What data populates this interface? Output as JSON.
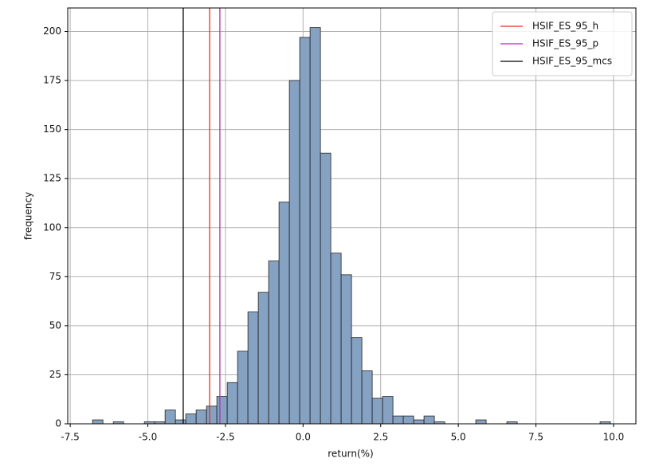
{
  "chart_data": {
    "type": "histogram",
    "xlabel": "return(%)",
    "ylabel": "frequency",
    "bins": [
      -6.78,
      -6.4464,
      -6.1128,
      -5.7792,
      -5.4456,
      -5.112,
      -4.7784,
      -4.4448,
      -4.1112,
      -3.7776,
      -3.444,
      -3.1104,
      -2.7768,
      -2.4432,
      -2.1096,
      -1.776,
      -1.4424,
      -1.1088,
      -0.7752,
      -0.4416,
      -0.108,
      0.2256,
      0.5592,
      0.8928,
      1.2264,
      1.56,
      1.8936,
      2.2272,
      2.5608,
      2.8944,
      3.228,
      3.5616,
      3.8952,
      4.2288,
      4.5624,
      4.896,
      5.2296,
      5.5632,
      5.8968,
      6.2304,
      6.564,
      6.8976,
      7.2312,
      7.5648,
      7.8984,
      8.232,
      8.5656,
      8.8992,
      9.2328,
      9.5664,
      9.9
    ],
    "values": [
      2,
      0,
      1,
      0,
      0,
      1,
      1,
      7,
      2,
      5,
      7,
      9,
      14,
      21,
      37,
      57,
      67,
      83,
      113,
      175,
      197,
      202,
      138,
      87,
      76,
      44,
      27,
      13,
      14,
      4,
      4,
      2,
      4,
      1,
      0,
      0,
      0,
      2,
      0,
      0,
      1,
      0,
      0,
      0,
      0,
      0,
      0,
      0,
      0,
      1
    ],
    "color": "#86a2c2",
    "edgecolor": "#222222",
    "vlines": [
      {
        "name": "HSIF_ES_95_h",
        "color": "#e8311e",
        "x": -3.01
      },
      {
        "name": "HSIF_ES_95_p",
        "color": "#b030b8",
        "x": -2.68
      },
      {
        "name": "HSIF_ES_95_mcs",
        "color": "#000000",
        "x": -3.86
      }
    ],
    "xlim": [
      -7.58,
      10.72
    ],
    "ylim": [
      0,
      212
    ],
    "xticks": [
      {
        "value": -7.5,
        "label": "-7.5"
      },
      {
        "value": -5,
        "label": "-5.0"
      },
      {
        "value": -2.5,
        "label": "-2.5"
      },
      {
        "value": 0,
        "label": "0.0"
      },
      2.5,
      {
        "value": 5,
        "label": "5.0"
      },
      7.5,
      {
        "value": 10,
        "label": "10.0"
      }
    ],
    "yticks": [
      0,
      25,
      50,
      75,
      100,
      125,
      150,
      175,
      200
    ],
    "grid": true,
    "legend": "upper right"
  }
}
